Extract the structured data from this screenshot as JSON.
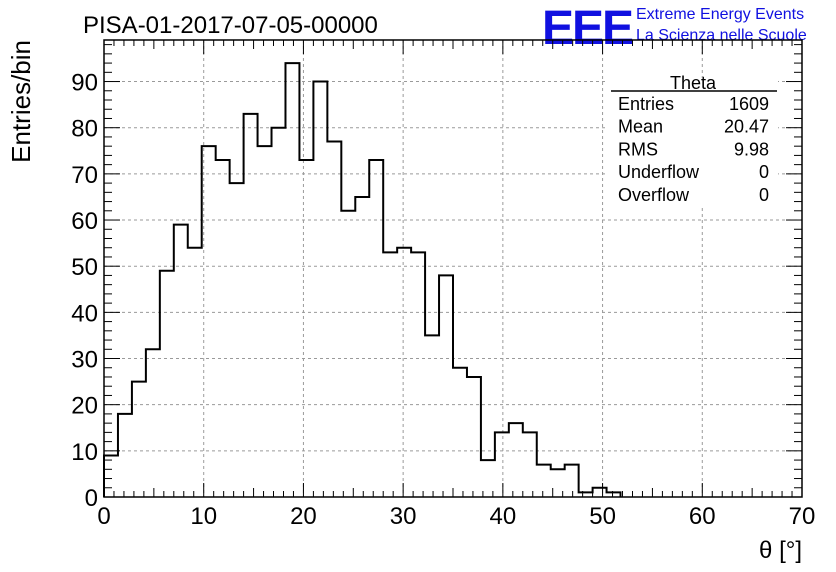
{
  "chart_data": {
    "type": "histogram",
    "title": "PISA-01-2017-07-05-00000",
    "xlabel": "θ [°]",
    "ylabel": "Entries/bin",
    "xlim": [
      0,
      70
    ],
    "ylim": [
      0,
      99
    ],
    "x_ticks": [
      0,
      10,
      20,
      30,
      40,
      50,
      60,
      70
    ],
    "y_ticks": [
      0,
      10,
      20,
      30,
      40,
      50,
      60,
      70,
      80,
      90
    ],
    "grid": true,
    "bin_width": 1.4,
    "bin_start": 0,
    "values": [
      9,
      18,
      25,
      32,
      49,
      59,
      54,
      76,
      73,
      68,
      83,
      76,
      80,
      94,
      73,
      90,
      77,
      62,
      65,
      73,
      53,
      54,
      53,
      35,
      48,
      28,
      26,
      8,
      14,
      16,
      14,
      7,
      6,
      7,
      1,
      2,
      1
    ],
    "stats_box": {
      "title": "Theta",
      "rows": [
        {
          "label": "Entries",
          "value": "1609"
        },
        {
          "label": "Mean",
          "value": "20.47"
        },
        {
          "label": "RMS",
          "value": "9.98"
        },
        {
          "label": "Underflow",
          "value": "0"
        },
        {
          "label": "Overflow",
          "value": "0"
        }
      ]
    },
    "logo": {
      "mark": "EEE",
      "line1": "Extreme Energy Events",
      "line2": "La Scienza nelle Scuole",
      "color": "#1010e0"
    },
    "line_color": "#000000",
    "grid_color": "#9a9a9a"
  }
}
